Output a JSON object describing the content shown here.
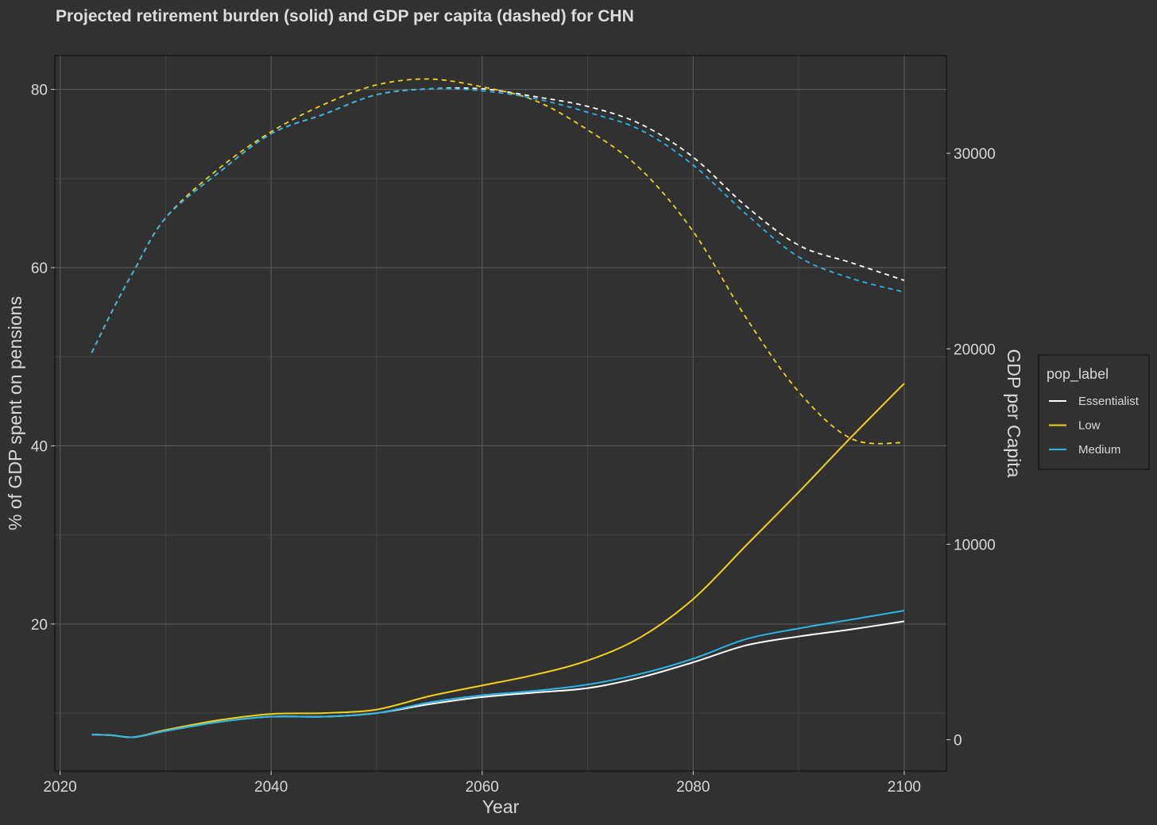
{
  "chart_data": {
    "type": "line",
    "title": "Projected retirement burden (solid) and GDP per capita (dashed) for CHN",
    "xlabel": "Year",
    "ylabel": "% of GDP spent on pensions",
    "ylabel_right": "GDP per Capita",
    "xlim": [
      2019.5,
      2104
    ],
    "ylim": [
      3.5,
      83.8
    ],
    "ylim_right": [
      -1600,
      35000
    ],
    "x_ticks": [
      2020,
      2040,
      2060,
      2080,
      2100
    ],
    "x_tick_labels": [
      "2020",
      "2040",
      "2060",
      "2080",
      "2100"
    ],
    "y_ticks": [
      20,
      40,
      60,
      80
    ],
    "y_tick_labels": [
      "20",
      "40",
      "60",
      "80"
    ],
    "y_right_ticks": [
      0,
      10000,
      20000,
      30000
    ],
    "y_right_tick_labels": [
      "0",
      "10000",
      "20000",
      "30000"
    ],
    "grid": true,
    "legend_position": "right",
    "legend_title": "pop_label",
    "x": [
      2023,
      2025,
      2027,
      2030,
      2035,
      2040,
      2045,
      2050,
      2055,
      2060,
      2065,
      2070,
      2075,
      2080,
      2085,
      2090,
      2095,
      2100
    ],
    "series": [
      {
        "name": "Essentialist",
        "color": "#ffffff",
        "pension_pct": [
          7.6,
          7.5,
          7.3,
          8.0,
          9.0,
          9.6,
          9.6,
          10.0,
          11.0,
          11.8,
          12.3,
          12.8,
          14.0,
          15.7,
          17.6,
          18.6,
          19.4,
          20.3
        ],
        "gdp_per_capita": [
          19800,
          22000,
          24000,
          26700,
          29000,
          31000,
          32000,
          33000,
          33300,
          33300,
          32900,
          32400,
          31500,
          29800,
          27300,
          25300,
          24400,
          23500
        ]
      },
      {
        "name": "Low",
        "color": "#f2d21b",
        "pension_pct": [
          7.6,
          7.5,
          7.3,
          8.1,
          9.2,
          9.9,
          10.0,
          10.4,
          11.9,
          13.1,
          14.3,
          15.9,
          18.5,
          22.8,
          28.8,
          34.8,
          41.0,
          47.0
        ],
        "gdp_per_capita": [
          19800,
          22000,
          24000,
          26700,
          29200,
          31100,
          32500,
          33500,
          33800,
          33400,
          32700,
          31200,
          29200,
          26000,
          21600,
          17800,
          15400,
          15200
        ]
      },
      {
        "name": "Medium",
        "color": "#29b6e8",
        "pension_pct": [
          7.6,
          7.5,
          7.3,
          8.0,
          9.0,
          9.6,
          9.6,
          10.0,
          11.2,
          12.0,
          12.5,
          13.2,
          14.4,
          16.1,
          18.3,
          19.5,
          20.5,
          21.5
        ],
        "gdp_per_capita": [
          19800,
          22000,
          24000,
          26700,
          29000,
          31000,
          32000,
          33000,
          33300,
          33200,
          32800,
          32100,
          31200,
          29400,
          26900,
          24700,
          23600,
          22900
        ]
      }
    ]
  }
}
